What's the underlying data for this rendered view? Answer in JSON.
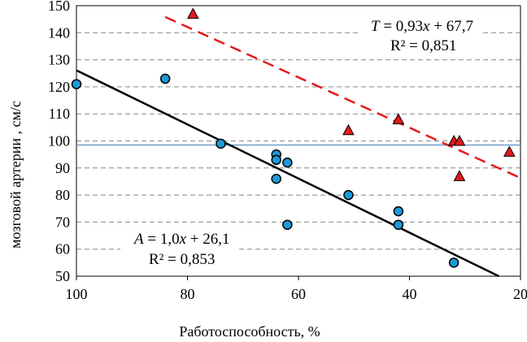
{
  "chart_data": {
    "type": "scatter",
    "xlabel": "Работоспособность, %",
    "ylabel": "мозговой артерии , см/с",
    "xlim": [
      100,
      20
    ],
    "ylim": [
      50,
      150
    ],
    "x_ticks": [
      "100",
      "80",
      "60",
      "40",
      "20"
    ],
    "y_ticks": [
      "150",
      "140",
      "130",
      "120",
      "110",
      "100",
      "90",
      "80",
      "70",
      "60",
      "50"
    ],
    "x_tick_values": [
      100,
      80,
      60,
      40,
      20
    ],
    "y_tick_values": [
      150,
      140,
      130,
      120,
      110,
      100,
      90,
      80,
      70,
      60,
      50
    ],
    "grid": "horizontal dashed",
    "reference_line_y": 98.5,
    "series": [
      {
        "marker": "circle",
        "color": "#1a9ad6",
        "points": [
          [
            100,
            121
          ],
          [
            84,
            123
          ],
          [
            74,
            99
          ],
          [
            64,
            95
          ],
          [
            64,
            93
          ],
          [
            64,
            86
          ],
          [
            62,
            92
          ],
          [
            62,
            69
          ],
          [
            51,
            80
          ],
          [
            42,
            74
          ],
          [
            42,
            69
          ],
          [
            32,
            55
          ]
        ],
        "trendline": {
          "slope": 1.0,
          "intercept": 26.1,
          "color": "#000000",
          "style": "solid"
        },
        "equation": {
          "var": "A",
          "rest": " = 1,0",
          "x": "x",
          "tail": " + 26,1",
          "r2": "R² = 0,853"
        }
      },
      {
        "marker": "triangle",
        "color": "#e31a1c",
        "points": [
          [
            79,
            147
          ],
          [
            51,
            104
          ],
          [
            42,
            108
          ],
          [
            32,
            100
          ],
          [
            31,
            100
          ],
          [
            31,
            87
          ],
          [
            22,
            96
          ]
        ],
        "trendline": {
          "slope": 0.93,
          "intercept": 67.7,
          "color": "#e31a1c",
          "style": "dashed"
        },
        "equation": {
          "var": "T",
          "rest": " = 0,93",
          "x": "x",
          "tail": " + 67,7",
          "r2": "R²  = 0,851"
        }
      }
    ]
  }
}
